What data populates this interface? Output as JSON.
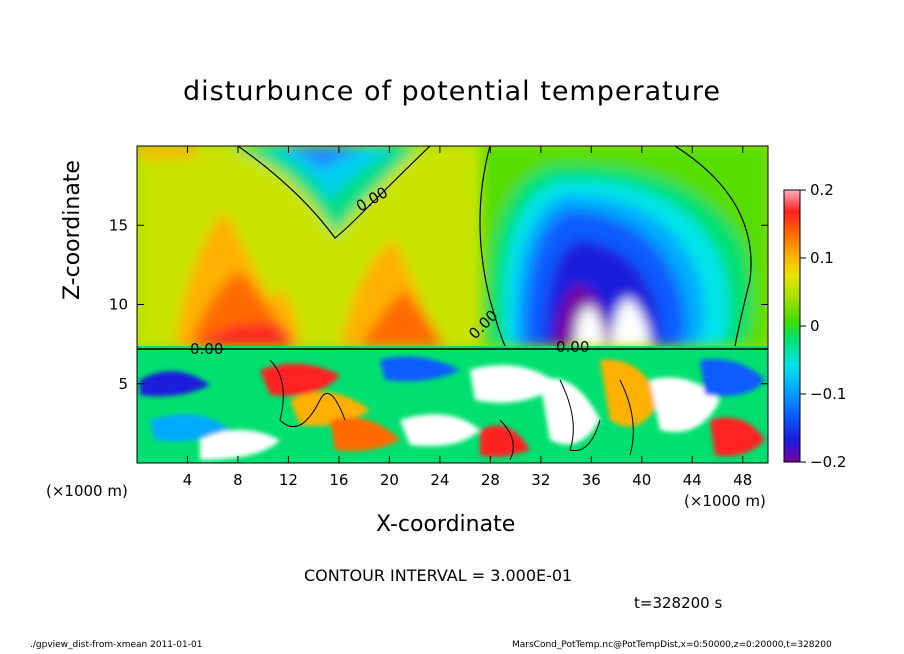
{
  "title": "disturbunce of potential temperature",
  "chart_data": {
    "type": "heatmap",
    "title": "disturbunce of potential temperature",
    "xlabel": "X-coordinate",
    "ylabel": "Z-coordinate",
    "x_unit_left": "(×1000 m)",
    "x_unit_right": "(×1000 m)",
    "xlim": [
      0,
      50
    ],
    "ylim": [
      0,
      20
    ],
    "x_ticks": [
      "4",
      "8",
      "12",
      "16",
      "20",
      "24",
      "28",
      "32",
      "36",
      "40",
      "44",
      "48"
    ],
    "x_tick_values": [
      4,
      8,
      12,
      16,
      20,
      24,
      28,
      32,
      36,
      40,
      44,
      48
    ],
    "y_ticks": [
      "5",
      "10",
      "15"
    ],
    "y_tick_values": [
      5,
      10,
      15
    ],
    "colorbar": {
      "range": [
        -0.2,
        0.2
      ],
      "tick_labels": [
        "0.2",
        "0.1",
        "0",
        "−0.1",
        "−0.2"
      ],
      "tick_values": [
        0.2,
        0.1,
        0,
        -0.1,
        -0.2
      ]
    },
    "contour_labels": [
      "0.00",
      "0.00",
      "0.00",
      "0.00"
    ],
    "contour_interval_text": "CONTOUR INTERVAL = 3.000E-01",
    "features": [
      {
        "description": "cold core",
        "x": 35,
        "z": 12,
        "value": -0.2
      },
      {
        "description": "cold top",
        "x": 12,
        "z": 19,
        "value": -0.1
      },
      {
        "description": "warm band",
        "x": 10,
        "z": 8.5,
        "value": 0.15
      },
      {
        "description": "warm band",
        "x": 21,
        "z": 8.5,
        "value": 0.15
      }
    ]
  },
  "time_label": "t=328200 s",
  "footer": {
    "left": "./gpview_dist-from-xmean   2011-01-01",
    "right": "MarsCond_PotTemp.nc@PotTempDist,x=0:50000,z=0:20000,t=328200"
  },
  "colors": {
    "background": "#ffffff",
    "palette": [
      "#7a00a0",
      "#1a1adc",
      "#0a5cff",
      "#00aaff",
      "#00e4e8",
      "#00e070",
      "#44dd00",
      "#9ee000",
      "#e6e600",
      "#ffb000",
      "#ff6a00",
      "#ff2020",
      "#ff9aa0"
    ]
  }
}
